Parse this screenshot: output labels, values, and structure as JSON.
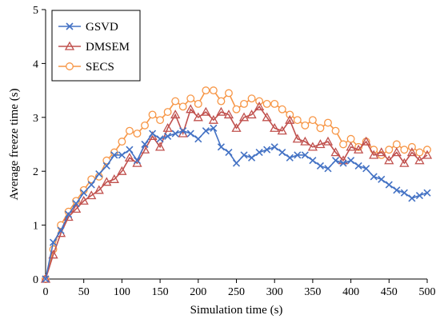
{
  "chart_data": {
    "type": "line",
    "title": "",
    "xlabel": "Simulation time (s)",
    "ylabel": "Average freeze time (s)",
    "xlim": [
      0,
      500
    ],
    "ylim": [
      0,
      5
    ],
    "xticks": [
      "0",
      "50",
      "100",
      "150",
      "200",
      "250",
      "300",
      "350",
      "400",
      "450",
      "500"
    ],
    "yticks": [
      "0",
      "1",
      "2",
      "3",
      "4",
      "5"
    ],
    "grid": false,
    "legend_position": "top-left",
    "x": [
      0,
      10,
      20,
      30,
      40,
      50,
      60,
      70,
      80,
      90,
      100,
      110,
      120,
      130,
      140,
      150,
      160,
      170,
      180,
      190,
      200,
      210,
      220,
      230,
      240,
      250,
      260,
      270,
      280,
      290,
      300,
      310,
      320,
      330,
      340,
      350,
      360,
      370,
      380,
      390,
      400,
      410,
      420,
      430,
      440,
      450,
      460,
      470,
      480,
      490,
      500
    ],
    "series": [
      {
        "name": "GSVD",
        "color": "#4472C4",
        "marker": "x",
        "values": [
          0,
          0.68,
          0.9,
          1.2,
          1.4,
          1.6,
          1.75,
          1.95,
          2.1,
          2.3,
          2.3,
          2.4,
          2.2,
          2.5,
          2.7,
          2.6,
          2.65,
          2.7,
          2.75,
          2.7,
          2.6,
          2.75,
          2.8,
          2.45,
          2.35,
          2.15,
          2.3,
          2.25,
          2.35,
          2.4,
          2.45,
          2.35,
          2.25,
          2.3,
          2.3,
          2.2,
          2.1,
          2.05,
          2.2,
          2.15,
          2.2,
          2.1,
          2.05,
          1.9,
          1.85,
          1.75,
          1.65,
          1.6,
          1.5,
          1.55,
          1.6
        ]
      },
      {
        "name": "DMSEM",
        "color": "#C0504D",
        "marker": "triangle",
        "values": [
          0,
          0.45,
          0.85,
          1.15,
          1.3,
          1.45,
          1.55,
          1.65,
          1.8,
          1.85,
          2.0,
          2.25,
          2.15,
          2.4,
          2.65,
          2.45,
          2.8,
          3.05,
          2.7,
          3.15,
          3.0,
          3.1,
          2.95,
          3.1,
          3.05,
          2.8,
          3.0,
          3.05,
          3.2,
          3.0,
          2.8,
          2.75,
          2.95,
          2.6,
          2.55,
          2.45,
          2.5,
          2.55,
          2.35,
          2.2,
          2.45,
          2.4,
          2.55,
          2.3,
          2.35,
          2.2,
          2.35,
          2.15,
          2.35,
          2.2,
          2.3
        ]
      },
      {
        "name": "SECS",
        "color": "#F79646",
        "marker": "circle",
        "values": [
          0,
          0.55,
          1.0,
          1.25,
          1.45,
          1.65,
          1.85,
          1.9,
          2.2,
          2.35,
          2.55,
          2.75,
          2.7,
          2.85,
          3.05,
          2.95,
          3.1,
          3.3,
          3.2,
          3.35,
          3.25,
          3.5,
          3.5,
          3.3,
          3.45,
          3.15,
          3.25,
          3.35,
          3.3,
          3.25,
          3.25,
          3.15,
          3.05,
          2.95,
          2.85,
          2.95,
          2.8,
          2.9,
          2.75,
          2.5,
          2.6,
          2.45,
          2.55,
          2.4,
          2.3,
          2.4,
          2.5,
          2.4,
          2.45,
          2.35,
          2.4
        ]
      }
    ]
  }
}
